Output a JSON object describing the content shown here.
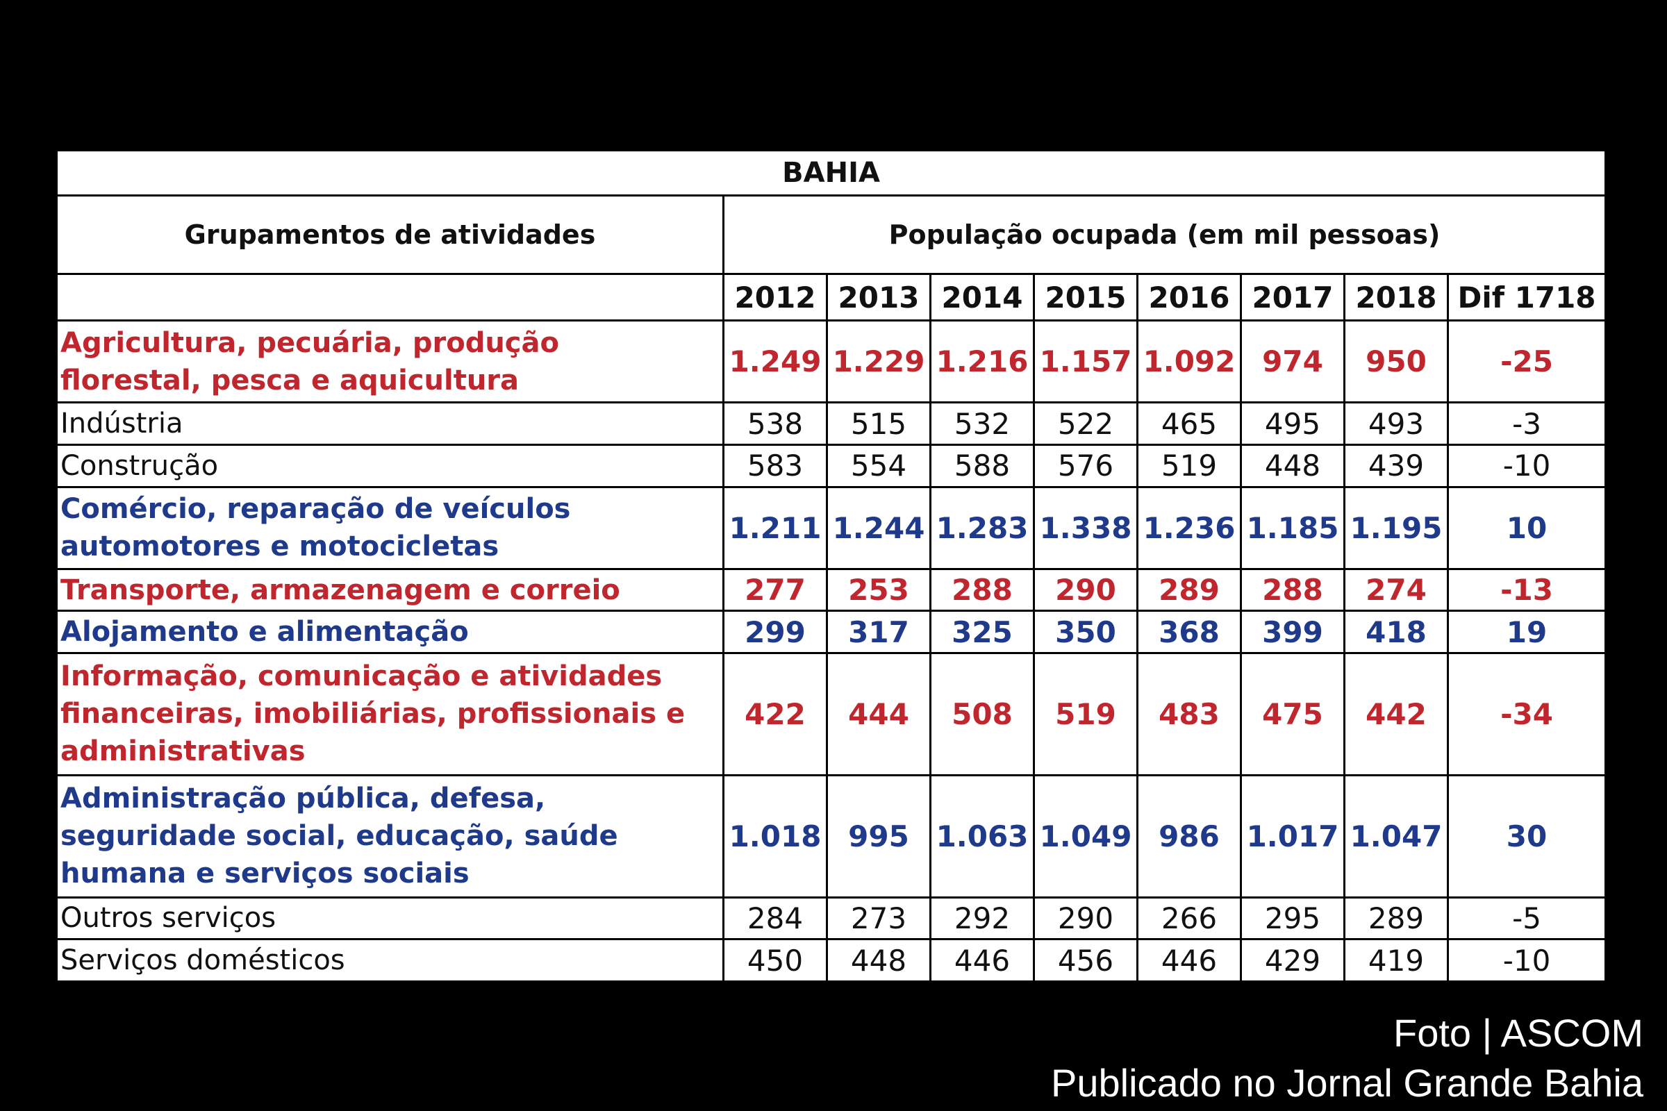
{
  "colors": {
    "red": "#c0262d",
    "blue": "#1f3a8a",
    "normal": "#111111"
  },
  "chart_data": {
    "type": "table",
    "title": "BAHIA",
    "row_header": "Grupamentos de atividades",
    "value_header": "População ocupada (em mil pessoas)",
    "columns": [
      "2012",
      "2013",
      "2014",
      "2015",
      "2016",
      "2017",
      "2018",
      "Dif 1718"
    ],
    "rows": [
      {
        "label_lines": [
          "Agricultura, pecuária, produção",
          "florestal, pesca e aquicultura"
        ],
        "style": "red",
        "values": [
          "1.249",
          "1.229",
          "1.216",
          "1.157",
          "1.092",
          "974",
          "950",
          "-25"
        ]
      },
      {
        "label_lines": [
          "Indústria"
        ],
        "style": "normal",
        "values": [
          "538",
          "515",
          "532",
          "522",
          "465",
          "495",
          "493",
          "-3"
        ]
      },
      {
        "label_lines": [
          "Construção"
        ],
        "style": "normal",
        "values": [
          "583",
          "554",
          "588",
          "576",
          "519",
          "448",
          "439",
          "-10"
        ]
      },
      {
        "label_lines": [
          "Comércio,  reparação de veículos",
          "automotores e motocicletas"
        ],
        "style": "blue",
        "values": [
          "1.211",
          "1.244",
          "1.283",
          "1.338",
          "1.236",
          "1.185",
          "1.195",
          "10"
        ]
      },
      {
        "label_lines": [
          "Transporte, armazenagem e correio"
        ],
        "style": "red",
        "values": [
          "277",
          "253",
          "288",
          "290",
          "289",
          "288",
          "274",
          "-13"
        ]
      },
      {
        "label_lines": [
          "Alojamento e alimentação"
        ],
        "style": "blue",
        "values": [
          "299",
          "317",
          "325",
          "350",
          "368",
          "399",
          "418",
          "19"
        ]
      },
      {
        "label_lines": [
          "Informação, comunicação e atividades",
          "financeiras, imobiliárias, profissionais e",
          "administrativas"
        ],
        "style": "red",
        "values": [
          "422",
          "444",
          "508",
          "519",
          "483",
          "475",
          "442",
          "-34"
        ]
      },
      {
        "label_lines": [
          "Administração pública, defesa,",
          "seguridade social, educação, saúde",
          "humana e serviços sociais"
        ],
        "style": "blue",
        "values": [
          "1.018",
          "995",
          "1.063",
          "1.049",
          "986",
          "1.017",
          "1.047",
          "30"
        ]
      },
      {
        "label_lines": [
          "Outros serviços"
        ],
        "style": "normal",
        "values": [
          "284",
          "273",
          "292",
          "290",
          "266",
          "295",
          "289",
          "-5"
        ]
      },
      {
        "label_lines": [
          "Serviços domésticos"
        ],
        "style": "normal",
        "values": [
          "450",
          "448",
          "446",
          "456",
          "446",
          "429",
          "419",
          "-10"
        ]
      }
    ]
  },
  "credit": {
    "line1": "Foto | ASCOM",
    "line2": "Publicado no Jornal Grande Bahia"
  }
}
